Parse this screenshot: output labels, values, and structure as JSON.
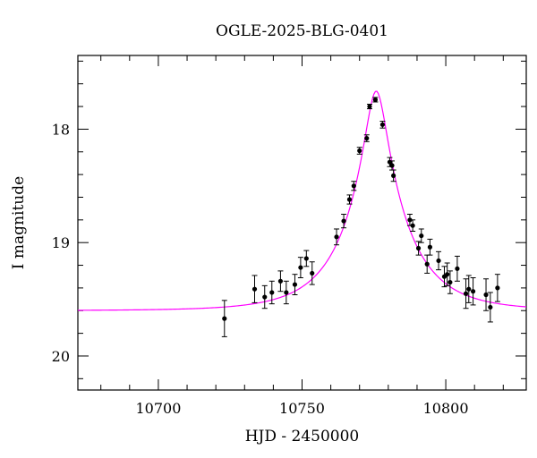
{
  "chart_data": {
    "type": "scatter",
    "title": "OGLE-2025-BLG-0401",
    "xlabel": "HJD - 2450000",
    "ylabel": "I magnitude",
    "xlim": [
      10672,
      10828
    ],
    "ylim": [
      20.3,
      17.35
    ],
    "y_inverted": true,
    "grid": false,
    "x_ticks": [
      10700,
      10750,
      10800
    ],
    "y_ticks": [
      18,
      19,
      20
    ],
    "x_tick_labels": [
      "10700",
      "10750",
      "10800"
    ],
    "y_tick_labels": [
      "18",
      "19",
      "20"
    ],
    "colors": {
      "data": "#000000",
      "model": "#ff00ff",
      "axes": "#000000"
    },
    "series": [
      {
        "type": "scatter_errorbar",
        "points": [
          {
            "x": 10723.0,
            "y": 19.67,
            "err": 0.16
          },
          {
            "x": 10733.5,
            "y": 19.41,
            "err": 0.12
          },
          {
            "x": 10737.0,
            "y": 19.48,
            "err": 0.1
          },
          {
            "x": 10739.5,
            "y": 19.44,
            "err": 0.1
          },
          {
            "x": 10742.5,
            "y": 19.34,
            "err": 0.09
          },
          {
            "x": 10744.5,
            "y": 19.44,
            "err": 0.1
          },
          {
            "x": 10747.5,
            "y": 19.37,
            "err": 0.09
          },
          {
            "x": 10749.5,
            "y": 19.22,
            "err": 0.09
          },
          {
            "x": 10751.5,
            "y": 19.14,
            "err": 0.07
          },
          {
            "x": 10753.5,
            "y": 19.27,
            "err": 0.1
          },
          {
            "x": 10762.0,
            "y": 18.95,
            "err": 0.07
          },
          {
            "x": 10764.5,
            "y": 18.81,
            "err": 0.06
          },
          {
            "x": 10766.5,
            "y": 18.62,
            "err": 0.04
          },
          {
            "x": 10768.0,
            "y": 18.5,
            "err": 0.04
          },
          {
            "x": 10770.0,
            "y": 18.19,
            "err": 0.03
          },
          {
            "x": 10772.5,
            "y": 18.08,
            "err": 0.03
          },
          {
            "x": 10773.5,
            "y": 17.8,
            "err": 0.02
          },
          {
            "x": 10775.5,
            "y": 17.74,
            "err": 0.02
          },
          {
            "x": 10778.0,
            "y": 17.96,
            "err": 0.03
          },
          {
            "x": 10780.5,
            "y": 18.29,
            "err": 0.04
          },
          {
            "x": 10781.3,
            "y": 18.32,
            "err": 0.04
          },
          {
            "x": 10781.8,
            "y": 18.41,
            "err": 0.05
          },
          {
            "x": 10787.5,
            "y": 18.8,
            "err": 0.05
          },
          {
            "x": 10788.5,
            "y": 18.85,
            "err": 0.05
          },
          {
            "x": 10790.5,
            "y": 19.05,
            "err": 0.06
          },
          {
            "x": 10791.5,
            "y": 18.94,
            "err": 0.06
          },
          {
            "x": 10793.5,
            "y": 19.19,
            "err": 0.08
          },
          {
            "x": 10794.5,
            "y": 19.04,
            "err": 0.07
          },
          {
            "x": 10797.5,
            "y": 19.16,
            "err": 0.08
          },
          {
            "x": 10799.5,
            "y": 19.3,
            "err": 0.09
          },
          {
            "x": 10800.5,
            "y": 19.28,
            "err": 0.1
          },
          {
            "x": 10801.5,
            "y": 19.35,
            "err": 0.1
          },
          {
            "x": 10804.0,
            "y": 19.23,
            "err": 0.11
          },
          {
            "x": 10807.0,
            "y": 19.45,
            "err": 0.13
          },
          {
            "x": 10808.0,
            "y": 19.41,
            "err": 0.12
          },
          {
            "x": 10809.5,
            "y": 19.43,
            "err": 0.12
          },
          {
            "x": 10814.0,
            "y": 19.46,
            "err": 0.14
          },
          {
            "x": 10815.5,
            "y": 19.57,
            "err": 0.13
          },
          {
            "x": 10818.0,
            "y": 19.4,
            "err": 0.12
          }
        ]
      },
      {
        "type": "line",
        "model": {
          "t0": 10775.8,
          "u0": 0.17,
          "tE": 21.0,
          "I_base": 19.6
        }
      }
    ]
  }
}
